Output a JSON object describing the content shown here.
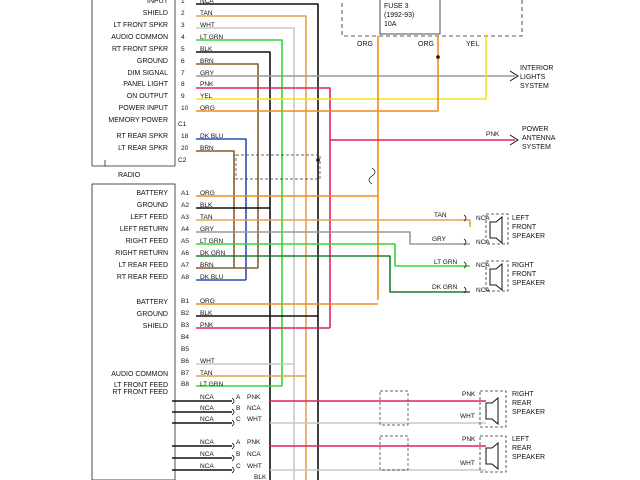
{
  "header": {
    "fuse_lines": [
      "FUSE 3",
      "(1992-93)",
      "10A"
    ],
    "top_labels": [
      "ORG",
      "ORG",
      "YEL"
    ]
  },
  "radio_label": "RADIO",
  "connector_labels": {
    "c1": "C1",
    "c2": "C2"
  },
  "radio_pins": [
    {
      "label": "INPUT",
      "pin": "1",
      "wire": "NCA",
      "color": "#111111"
    },
    {
      "label": "SHIELD",
      "pin": "2",
      "wire": "TAN",
      "color": "#e2a34a"
    },
    {
      "label": "LT FRONT SPKR",
      "pin": "3",
      "wire": "WHT",
      "color": "#c8c8c8"
    },
    {
      "label": "AUDIO COMMON",
      "pin": "4",
      "wire": "LT GRN",
      "color": "#33d633"
    },
    {
      "label": "RT FRONT SPKR",
      "pin": "5",
      "wire": "BLK",
      "color": "#111111"
    },
    {
      "label": "GROUND",
      "pin": "6",
      "wire": "BRN",
      "color": "#8b5a2b"
    },
    {
      "label": "DIM SIGNAL",
      "pin": "7",
      "wire": "GRY",
      "color": "#9a9a9a"
    },
    {
      "label": "PANEL LIGHT",
      "pin": "8",
      "wire": "PNK",
      "color": "#e0245e"
    },
    {
      "label": "ON OUTPUT",
      "pin": "9",
      "wire": "YEL",
      "color": "#f2e21e"
    },
    {
      "label": "POWER INPUT",
      "pin": "10",
      "wire": "ORG",
      "color": "#f08c1a"
    },
    {
      "label": "MEMORY POWER",
      "pin": "",
      "wire": "",
      "color": "#111111"
    },
    {
      "label": "RT REAR SPKR",
      "pin": "18",
      "wire": "DK BLU",
      "color": "#2c4fb8"
    },
    {
      "label": "LT REAR SPKR",
      "pin": "20",
      "wire": "BRN",
      "color": "#8b5a2b"
    }
  ],
  "right_refs": [
    {
      "lines": [
        "INTERIOR",
        "LIGHTS",
        "SYSTEM"
      ]
    },
    {
      "wire": "PNK",
      "lines": [
        "POWER",
        "ANTENNA",
        "SYSTEM"
      ]
    }
  ],
  "amp_pins_a": [
    {
      "label": "BATTERY",
      "pin": "A1",
      "wire": "ORG",
      "color": "#f08c1a"
    },
    {
      "label": "GROUND",
      "pin": "A2",
      "wire": "BLK",
      "color": "#111111"
    },
    {
      "label": "LEFT FEED",
      "pin": "A3",
      "wire": "TAN",
      "color": "#e2a34a"
    },
    {
      "label": "LEFT RETURN",
      "pin": "A4",
      "wire": "GRY",
      "color": "#9a9a9a"
    },
    {
      "label": "RIGHT FEED",
      "pin": "A5",
      "wire": "LT GRN",
      "color": "#33d633"
    },
    {
      "label": "RIGHT RETURN",
      "pin": "A6",
      "wire": "DK GRN",
      "color": "#1e7d32"
    },
    {
      "label": "LT REAR FEED",
      "pin": "A7",
      "wire": "BRN",
      "color": "#8b5a2b"
    },
    {
      "label": "RT REAR FEED",
      "pin": "A8",
      "wire": "DK BLU",
      "color": "#2c4fb8"
    }
  ],
  "amp_pins_b": [
    {
      "label": "BATTERY",
      "pin": "B1",
      "wire": "ORG",
      "color": "#f08c1a"
    },
    {
      "label": "GROUND",
      "pin": "B2",
      "wire": "BLK",
      "color": "#111111"
    },
    {
      "label": "SHIELD",
      "pin": "B3",
      "wire": "PNK",
      "color": "#e0245e"
    },
    {
      "label": "",
      "pin": "B4",
      "wire": "",
      "color": "#111111"
    },
    {
      "label": "",
      "pin": "B5",
      "wire": "",
      "color": "#111111"
    },
    {
      "label": "",
      "pin": "B6",
      "wire": "WHT",
      "color": "#c8c8c8"
    },
    {
      "label": "AUDIO COMMON",
      "pin": "B7",
      "wire": "TAN",
      "color": "#e2a34a"
    },
    {
      "label": "LT FRONT FEED",
      "pin": "B8",
      "wire": "LT GRN",
      "color": "#33d633"
    },
    {
      "label": "RT FRONT FEED",
      "pin": "",
      "wire": "",
      "color": "#111111"
    }
  ],
  "front_speakers": [
    {
      "lines": [
        "LEFT",
        "FRONT",
        "SPEAKER"
      ],
      "wires": [
        {
          "wire": "TAN",
          "nca": "NCA",
          "color": "#e2a34a"
        },
        {
          "wire": "GRY",
          "nca": "NCA",
          "color": "#9a9a9a"
        }
      ]
    },
    {
      "lines": [
        "RIGHT",
        "FRONT",
        "SPEAKER"
      ],
      "wires": [
        {
          "wire": "LT GRN",
          "nca": "NCA",
          "color": "#33d633"
        },
        {
          "wire": "DK GRN",
          "nca": "NCA",
          "color": "#1e7d32"
        }
      ]
    }
  ],
  "rear_speakers": [
    {
      "lines": [
        "RIGHT",
        "REAR",
        "SPEAKER"
      ],
      "rows": [
        {
          "nca": "NCA",
          "pin": "A",
          "wire": "PNK",
          "color": "#e0245e"
        },
        {
          "nca": "NCA",
          "pin": "B",
          "wire": "NCA",
          "color": "#111111"
        },
        {
          "nca": "NCA",
          "pin": "C",
          "wire": "WHT",
          "color": "#c8c8c8"
        }
      ],
      "right_wires": [
        "PNK",
        "WHT"
      ]
    },
    {
      "lines": [
        "LEFT",
        "REAR",
        "SPEAKER"
      ],
      "rows": [
        {
          "nca": "NCA",
          "pin": "A",
          "wire": "PNK",
          "color": "#e0245e"
        },
        {
          "nca": "NCA",
          "pin": "B",
          "wire": "NCA",
          "color": "#111111"
        },
        {
          "nca": "NCA",
          "pin": "C",
          "wire": "WHT",
          "color": "#c8c8c8"
        }
      ],
      "right_wires": [
        "PNK",
        "WHT"
      ]
    }
  ],
  "bottom_label": "BLK"
}
